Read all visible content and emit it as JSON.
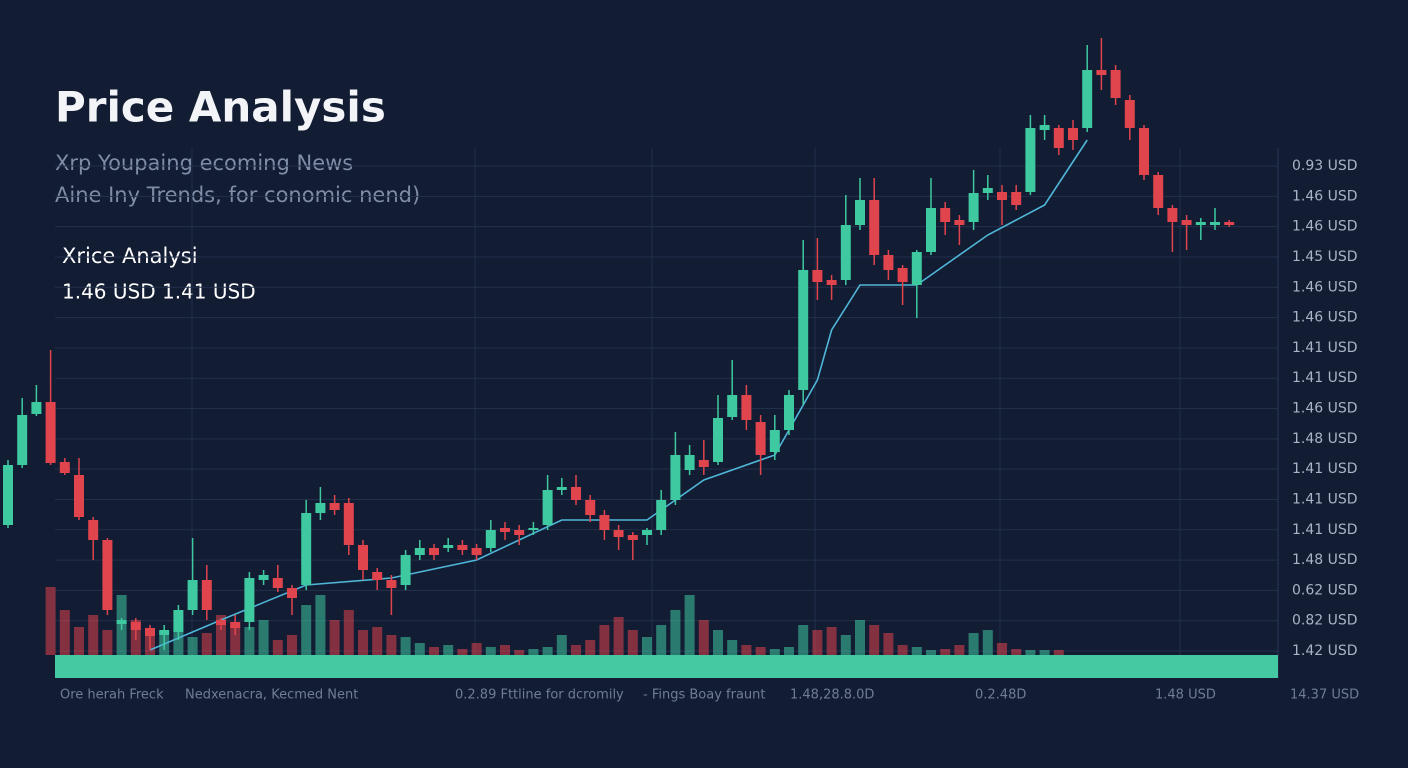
{
  "chart_data": {
    "type": "candlestick",
    "title": "Price Analysis",
    "subtitle": [
      "Xrp Youpaing ecoming News",
      "Aine Iny Trends, for conomic nend)"
    ],
    "annotations": [
      "Xrice Analysi",
      "1.46 USD 1.41 USD"
    ],
    "axis_labels": [
      "0.93 USD",
      "1.46 USD",
      "1.46 USD",
      "1.45 USD",
      "1.46 USD",
      "1.46 USD",
      "1.41 USD",
      "1.41 USD",
      "1.46 USD",
      "1.48 USD",
      "1.41 USD",
      "1.41 USD",
      "1.41 USD",
      "1.48 USD",
      "0.62 USD",
      "0.82 USD",
      "1.42 USD"
    ],
    "footer_labels": [
      "Ore herah Freck",
      "Nedxenacra, Kecmed Nent",
      "0.2.89 Fttline for dcromily",
      "- Fings Boay fraunt",
      "1.48,28.8.0D",
      "0.2.48D",
      "1.48 USD",
      "14.37 USD"
    ],
    "ylim": [
      0,
      650
    ],
    "up_color": "#3fc9a0",
    "down_color": "#e0444d",
    "ma_color": "#4fb6d8",
    "band_color": "#45c9a3",
    "open": [
      155,
      215,
      266,
      278,
      218,
      205,
      160,
      140,
      56,
      58,
      52,
      45,
      48,
      70,
      100,
      60,
      58,
      58,
      100,
      102,
      92,
      95,
      167,
      177,
      177,
      135,
      108,
      100,
      95,
      125,
      132,
      132,
      135,
      132,
      132,
      152,
      150,
      150,
      155,
      190,
      193,
      180,
      165,
      150,
      145,
      145,
      150,
      180,
      210,
      220,
      218,
      263,
      285,
      258,
      228,
      250,
      290,
      410,
      400,
      400,
      455,
      480,
      425,
      412,
      395,
      428,
      472,
      460,
      458,
      487,
      488,
      488,
      488,
      550,
      552,
      552,
      552,
      610,
      610,
      580,
      552,
      505,
      472,
      460,
      455,
      455,
      458
    ],
    "close": [
      215,
      265,
      278,
      217,
      207,
      163,
      140,
      70,
      60,
      50,
      44,
      50,
      70,
      100,
      70,
      55,
      52,
      102,
      105,
      92,
      82,
      167,
      177,
      170,
      135,
      110,
      100,
      92,
      125,
      132,
      125,
      135,
      130,
      125,
      150,
      148,
      145,
      152,
      190,
      193,
      180,
      165,
      150,
      143,
      140,
      150,
      180,
      225,
      225,
      213,
      262,
      285,
      260,
      225,
      250,
      285,
      410,
      398,
      395,
      455,
      480,
      425,
      410,
      398,
      428,
      472,
      458,
      455,
      487,
      492,
      480,
      475,
      552,
      555,
      532,
      540,
      610,
      605,
      582,
      552,
      505,
      472,
      458,
      455,
      458,
      458,
      455
    ],
    "high": [
      220,
      282,
      295,
      330,
      222,
      222,
      163,
      142,
      62,
      62,
      55,
      55,
      75,
      142,
      115,
      62,
      65,
      108,
      110,
      115,
      95,
      180,
      193,
      185,
      182,
      140,
      112,
      105,
      130,
      140,
      136,
      142,
      140,
      136,
      160,
      158,
      155,
      158,
      205,
      202,
      205,
      185,
      170,
      155,
      148,
      152,
      190,
      248,
      235,
      240,
      285,
      320,
      295,
      265,
      265,
      290,
      440,
      442,
      405,
      485,
      502,
      502,
      430,
      415,
      430,
      502,
      478,
      465,
      510,
      505,
      495,
      495,
      565,
      565,
      555,
      560,
      635,
      642,
      615,
      585,
      555,
      508,
      475,
      465,
      462,
      472,
      460
    ],
    "low": [
      152,
      212,
      264,
      215,
      205,
      160,
      120,
      65,
      50,
      40,
      30,
      30,
      40,
      65,
      60,
      50,
      45,
      50,
      95,
      88,
      65,
      90,
      160,
      165,
      125,
      100,
      90,
      65,
      90,
      120,
      120,
      128,
      125,
      120,
      128,
      140,
      135,
      145,
      150,
      185,
      175,
      158,
      140,
      130,
      120,
      135,
      145,
      175,
      205,
      205,
      215,
      260,
      250,
      205,
      220,
      245,
      275,
      380,
      380,
      395,
      450,
      415,
      400,
      375,
      362,
      425,
      445,
      435,
      450,
      480,
      455,
      470,
      485,
      540,
      525,
      530,
      548,
      590,
      575,
      540,
      500,
      465,
      428,
      430,
      440,
      450,
      453
    ],
    "volume_lim": [
      0,
      80
    ],
    "volume": [
      null,
      null,
      null,
      68,
      45,
      28,
      40,
      25,
      60,
      35,
      25,
      20,
      30,
      18,
      22,
      40,
      30,
      28,
      35,
      15,
      20,
      50,
      60,
      35,
      45,
      25,
      28,
      20,
      18,
      12,
      8,
      10,
      6,
      12,
      8,
      10,
      5,
      6,
      8,
      20,
      10,
      15,
      30,
      38,
      25,
      18,
      30,
      45,
      60,
      35,
      25,
      15,
      10,
      8,
      6,
      8,
      30,
      25,
      28,
      20,
      35,
      30,
      22,
      10,
      8,
      5,
      6,
      10,
      22,
      25,
      12,
      6,
      5,
      5,
      5,
      null,
      null,
      null,
      null,
      null,
      null,
      null,
      null,
      null,
      null,
      null,
      null
    ],
    "moving_average": {
      "x": [
        10,
        15,
        21,
        27,
        33,
        39,
        45,
        49,
        54,
        57,
        58,
        60,
        64,
        69,
        73,
        76
      ],
      "values": [
        30,
        60,
        95,
        102,
        120,
        160,
        160,
        200,
        225,
        300,
        350,
        395,
        395,
        445,
        475,
        540
      ]
    }
  }
}
